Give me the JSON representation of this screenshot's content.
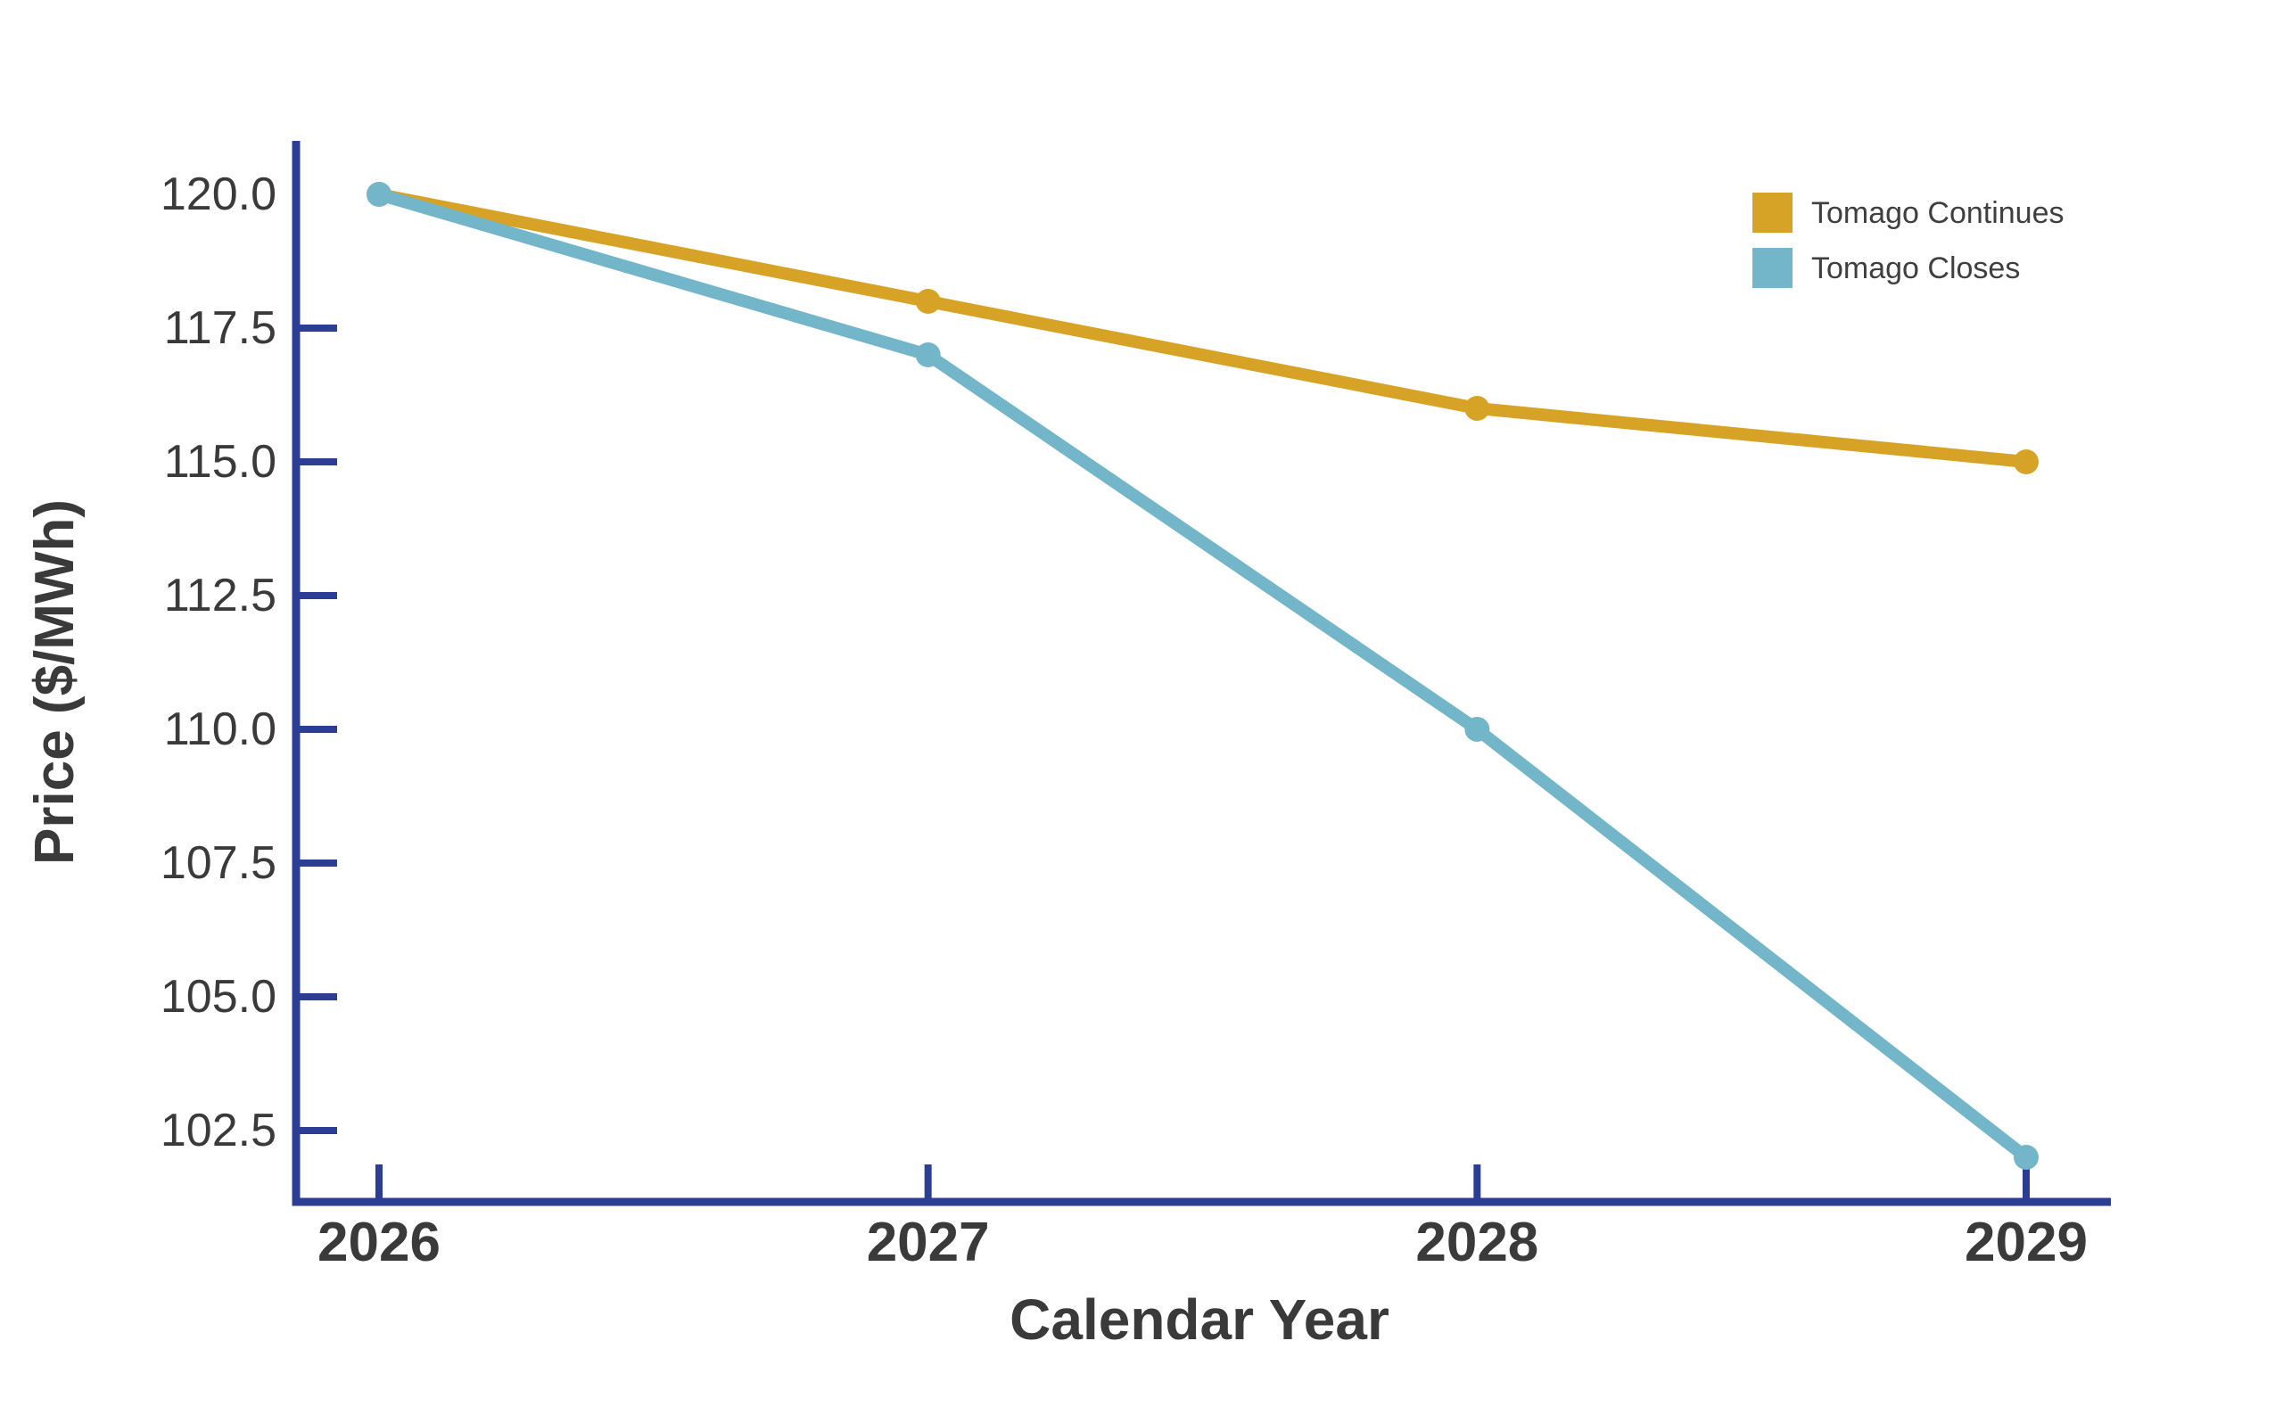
{
  "chart_data": {
    "type": "line",
    "title": "",
    "xlabel": "Calendar Year",
    "ylabel": "Price ($/MWh)",
    "x": [
      2026,
      2027,
      2028,
      2029
    ],
    "x_tick_labels": [
      "2026",
      "2027",
      "2028",
      "2029"
    ],
    "y_ticks": [
      120.0,
      117.5,
      115.0,
      112.5,
      110.0,
      107.5,
      105.0,
      102.5
    ],
    "y_tick_labels": [
      "120.0",
      "117.5",
      "115.0",
      "112.5",
      "110.0",
      "107.5",
      "105.0",
      "102.5"
    ],
    "y_ticks_no_mark": [
      120.0
    ],
    "xlim": [
      2025.85,
      2029.15
    ],
    "ylim": [
      101.2,
      121.0
    ],
    "grid": false,
    "legend_position": "upper right",
    "series": [
      {
        "name": "Tomago Continues",
        "color": "#D7A327",
        "values": [
          120.0,
          118.0,
          116.0,
          115.0
        ]
      },
      {
        "name": "Tomago Closes",
        "color": "#73B6C9",
        "values": [
          120.0,
          117.0,
          110.0,
          102.0
        ]
      }
    ],
    "marker": "circle",
    "axis_color": "#2C3E94",
    "tick_label_color": "#3A3A3A",
    "legend_text_color": "#3F3F3F"
  }
}
